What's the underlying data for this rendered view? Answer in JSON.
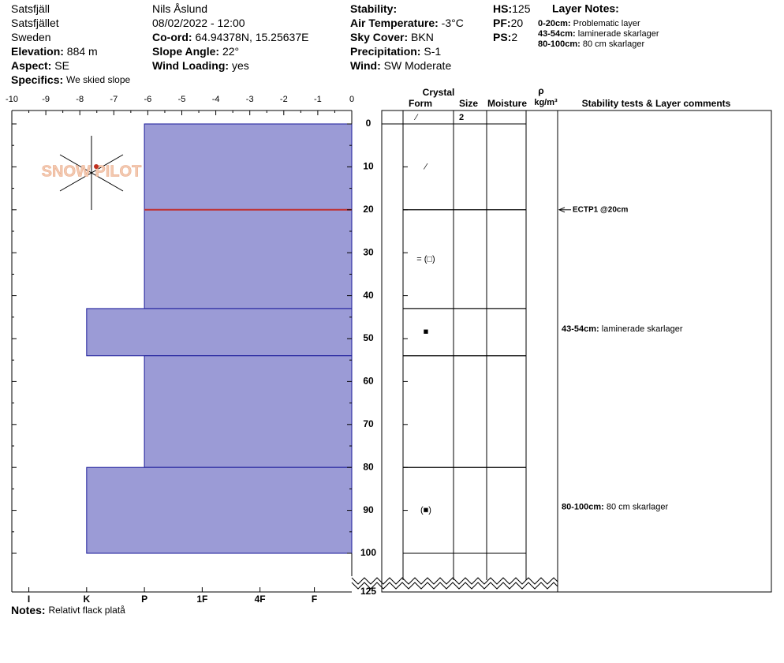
{
  "header": {
    "columns": [
      [
        {
          "text": "Satsfjäll"
        },
        {
          "text": "Satsfjället"
        },
        {
          "text": "Sweden"
        },
        {
          "label": "Elevation:",
          "value": "884 m"
        },
        {
          "label": "Aspect:",
          "value": "SE"
        },
        {
          "label": "Specifics:",
          "value": "We skied slope",
          "small": true
        }
      ],
      [
        {
          "text": "Nils Åslund"
        },
        {
          "text": "08/02/2022 - 12:00"
        },
        {
          "label": "Co-ord:",
          "value": "64.94378N, 15.25637E"
        },
        {
          "label": "Slope Angle:",
          "value": "22°"
        },
        {
          "label": "Wind Loading:",
          "value": "yes"
        }
      ],
      [
        {
          "label": "Stability:"
        },
        {
          "label": "Air Temperature:",
          "value": "-3°C"
        },
        {
          "label": "Sky Cover:",
          "value": "BKN"
        },
        {
          "label": "Precipitation:",
          "value": "S-1"
        },
        {
          "label": "Wind:",
          "value": "SW Moderate"
        }
      ],
      [
        {
          "label": "HS:",
          "value": 125
        },
        {
          "label": "PF:",
          "value": 20
        },
        {
          "label": "PS:",
          "value": 2
        }
      ]
    ],
    "layer_notes_title": "Layer Notes:",
    "layer_notes": [
      {
        "label": "0-20cm:",
        "text": "Problematic layer"
      },
      {
        "label": "43-54cm:",
        "text": "laminerade skarlager"
      },
      {
        "label": "80-100cm:",
        "text": "80 cm skarlager"
      }
    ]
  },
  "logo": "SNOW PILOT",
  "profile": {
    "hardness_lim": [
      -10,
      0
    ],
    "hardness_ticks": [
      -10,
      -9,
      -8,
      -7,
      -6,
      -5,
      -4,
      -3,
      -2,
      -1,
      0
    ],
    "hardness_labels": [
      {
        "value": -9.5,
        "label": "I"
      },
      {
        "value": -7.8,
        "label": "K"
      },
      {
        "value": -6.1,
        "label": "P"
      },
      {
        "value": -4.4,
        "label": "1F"
      },
      {
        "value": -2.7,
        "label": "4F"
      },
      {
        "value": -1.1,
        "label": "F"
      }
    ],
    "depth_ticks": [
      0,
      10,
      20,
      30,
      40,
      50,
      60,
      70,
      80,
      90,
      100,
      125
    ],
    "layers": [
      {
        "top": 0,
        "bottom": 20,
        "hardness": -6.1,
        "form": "⁄"
      },
      {
        "top": 20,
        "bottom": 43,
        "hardness": -6.1,
        "form": "= (□)"
      },
      {
        "top": 43,
        "bottom": 54,
        "hardness": -7.8,
        "form": "■",
        "comment_label": "43-54cm:",
        "comment": "laminerade skarlager"
      },
      {
        "top": 54,
        "bottom": 80,
        "hardness": -6.1
      },
      {
        "top": 80,
        "bottom": 100,
        "hardness": -7.8,
        "form": "(■)",
        "comment_label": "80-100cm:",
        "comment": "80 cm skarlager"
      }
    ],
    "concern_depth": 20,
    "surface": {
      "form": "⁄",
      "size": 2
    },
    "tests": [
      {
        "depth": 20,
        "text": "ECTP1 @20cm"
      }
    ]
  },
  "table_headers": {
    "crystal": "Crystal",
    "form": "Form",
    "size": "Size",
    "moisture": "Moisture",
    "rho": "ρ",
    "density_unit": "kg/m³",
    "comments": "Stability tests & Layer comments"
  },
  "notes": {
    "label": "Notes:",
    "text": "Relativt flack platå"
  }
}
